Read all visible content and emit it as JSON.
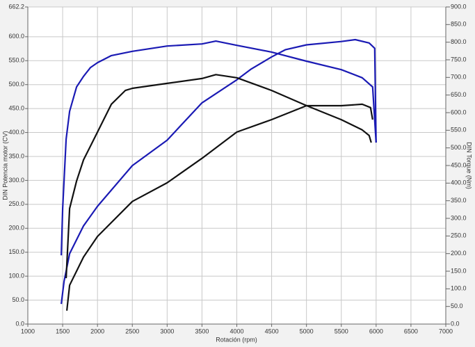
{
  "chart_data": {
    "type": "line",
    "xlabel": "Rotación (rpm)",
    "ylabel": "DIN Potencia motor (CV)",
    "y2label": "DIN Torque (Nm)",
    "xlim": [
      1000,
      7000
    ],
    "xticks": [
      1000,
      1500,
      2000,
      2500,
      3000,
      3500,
      4000,
      4500,
      5000,
      5500,
      6000,
      6500,
      7000
    ],
    "ylim": [
      0,
      662.2
    ],
    "yticks": [
      {
        "value": 0,
        "label": "0.0"
      },
      {
        "value": 50,
        "label": "50.0"
      },
      {
        "value": 100,
        "label": "100.0"
      },
      {
        "value": 150,
        "label": "150.0"
      },
      {
        "value": 200,
        "label": "200.0"
      },
      {
        "value": 250,
        "label": "250.0"
      },
      {
        "value": 300,
        "label": "300.0"
      },
      {
        "value": 350,
        "label": "350.0"
      },
      {
        "value": 400,
        "label": "400.0"
      },
      {
        "value": 450,
        "label": "450.0"
      },
      {
        "value": 500,
        "label": "500.0"
      },
      {
        "value": 550,
        "label": "550.0"
      },
      {
        "value": 600,
        "label": "600.0"
      },
      {
        "value": 662.2,
        "label": "662.2"
      }
    ],
    "y2lim": [
      0,
      900
    ],
    "y2ticks": [
      {
        "value": 0,
        "label": "0.0"
      },
      {
        "value": 50,
        "label": "50.0"
      },
      {
        "value": 100,
        "label": "100.0"
      },
      {
        "value": 150,
        "label": "150.0"
      },
      {
        "value": 200,
        "label": "200.0"
      },
      {
        "value": 250,
        "label": "250.0"
      },
      {
        "value": 300,
        "label": "300.0"
      },
      {
        "value": 350,
        "label": "350.0"
      },
      {
        "value": 400,
        "label": "400.0"
      },
      {
        "value": 450,
        "label": "450.0"
      },
      {
        "value": 500,
        "label": "500.0"
      },
      {
        "value": 550,
        "label": "550.0"
      },
      {
        "value": 600,
        "label": "600.0"
      },
      {
        "value": 650,
        "label": "650.0"
      },
      {
        "value": 700,
        "label": "700.0"
      },
      {
        "value": 750,
        "label": "750.0"
      },
      {
        "value": 800,
        "label": "800.0"
      },
      {
        "value": 850,
        "label": "850.0"
      },
      {
        "value": 900,
        "label": "900.0"
      }
    ],
    "grid": true,
    "series": [
      {
        "color": "#1a1ab4",
        "axis": "y2",
        "x": [
          1480,
          1500,
          1550,
          1600,
          1700,
          1800,
          1900,
          2000,
          2200,
          2500,
          3000,
          3500,
          3700,
          4000,
          4500,
          5000,
          5500,
          5800,
          5950,
          6000
        ],
        "values": [
          195,
          328,
          525,
          604,
          673,
          703,
          728,
          742,
          762,
          774,
          789,
          795,
          803,
          791,
          772,
          746,
          722,
          699,
          673,
          515
        ]
      },
      {
        "color": "#1a1ab4",
        "axis": "y",
        "x": [
          1480,
          1520,
          1600,
          1800,
          2000,
          2500,
          3000,
          3500,
          4000,
          4200,
          4500,
          4700,
          5000,
          5500,
          5700,
          5900,
          5980,
          6000
        ],
        "values": [
          42,
          89,
          147,
          205,
          246,
          331,
          384,
          462,
          510,
          532,
          558,
          573,
          583,
          590,
          594,
          587,
          576,
          379
        ]
      },
      {
        "color": "#111111",
        "axis": "y2",
        "x": [
          1550,
          1600,
          1700,
          1800,
          2000,
          2200,
          2400,
          2500,
          3000,
          3500,
          3700,
          4000,
          4500,
          5000,
          5500,
          5800,
          5900,
          5930
        ],
        "values": [
          130,
          328,
          406,
          466,
          545,
          624,
          663,
          669,
          683,
          697,
          708,
          699,
          663,
          620,
          580,
          551,
          535,
          515
        ]
      },
      {
        "color": "#111111",
        "axis": "y",
        "x": [
          1560,
          1600,
          1800,
          2000,
          2500,
          3000,
          3500,
          4000,
          4500,
          5000,
          5500,
          5800,
          5920,
          5950
        ],
        "values": [
          28,
          81,
          140,
          183,
          256,
          295,
          346,
          401,
          427,
          456,
          456,
          459,
          452,
          427
        ]
      }
    ]
  }
}
